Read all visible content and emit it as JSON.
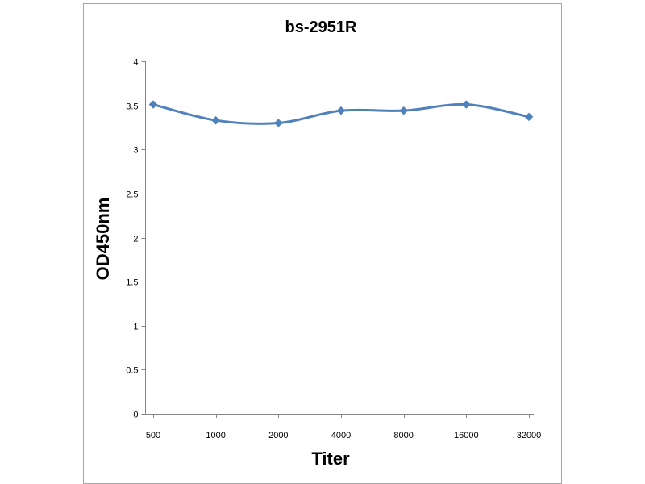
{
  "chart_data": {
    "type": "line",
    "title": "bs-2951R",
    "xlabel": "Titer",
    "ylabel": "OD450nm",
    "categories": [
      "500",
      "1000",
      "2000",
      "4000",
      "8000",
      "16000",
      "32000"
    ],
    "series": [
      {
        "values": [
          3.51,
          3.33,
          3.3,
          3.44,
          3.44,
          3.51,
          3.37
        ],
        "color": "#4f81bd",
        "marker": "diamond",
        "smooth": true
      }
    ],
    "ylim": [
      0,
      4
    ],
    "yticks": [
      0,
      0.5,
      1,
      1.5,
      2,
      2.5,
      3,
      3.5,
      4
    ],
    "ytick_labels": [
      "0",
      "0.5",
      "1",
      "1.5",
      "2",
      "2.5",
      "3",
      "3.5",
      "4"
    ],
    "grid": false,
    "legend": "none"
  }
}
